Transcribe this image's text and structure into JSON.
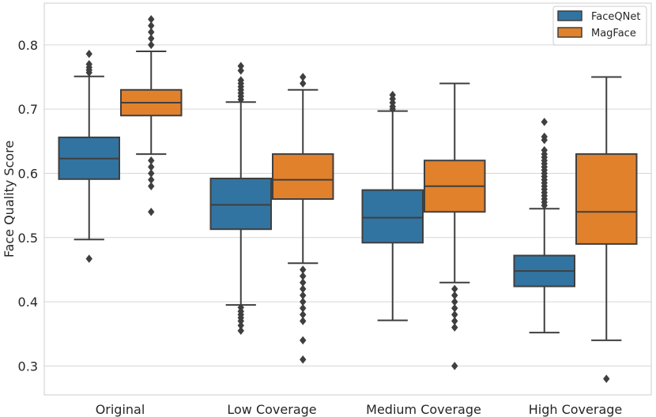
{
  "chart_data": {
    "type": "boxplot",
    "title": "",
    "xlabel": "",
    "ylabel": "Face Quality Score",
    "ylim": [
      0.255,
      0.865
    ],
    "yticks": [
      "0.3",
      "0.4",
      "0.5",
      "0.6",
      "0.7",
      "0.8"
    ],
    "yticks_values": [
      0.3,
      0.4,
      0.5,
      0.6,
      0.7,
      0.8
    ],
    "categories": [
      "Original",
      "Low Coverage",
      "Medium Coverage",
      "High Coverage"
    ],
    "legend_position": "top-right",
    "grid": true,
    "series": [
      {
        "name": "FaceQNet",
        "color": "#3274a1",
        "boxes": [
          {
            "q1": 0.591,
            "median": 0.623,
            "q3": 0.656,
            "whisker_low": 0.497,
            "whisker_high": 0.751,
            "outliers": [
              0.467,
              0.786,
              0.77,
              0.765,
              0.761,
              0.757
            ]
          },
          {
            "q1": 0.513,
            "median": 0.551,
            "q3": 0.592,
            "whisker_low": 0.395,
            "whisker_high": 0.711,
            "outliers": [
              0.767,
              0.76,
              0.745,
              0.74,
              0.735,
              0.73,
              0.725,
              0.72,
              0.715,
              0.391,
              0.385,
              0.38,
              0.375,
              0.37,
              0.363,
              0.355
            ]
          },
          {
            "q1": 0.492,
            "median": 0.531,
            "q3": 0.574,
            "whisker_low": 0.371,
            "whisker_high": 0.697,
            "outliers": [
              0.722,
              0.716,
              0.71,
              0.704,
              0.7
            ]
          },
          {
            "q1": 0.424,
            "median": 0.448,
            "q3": 0.472,
            "whisker_low": 0.352,
            "whisker_high": 0.545,
            "outliers": [
              0.68,
              0.657,
              0.652,
              0.636,
              0.63,
              0.625,
              0.62,
              0.615,
              0.61,
              0.605,
              0.6,
              0.595,
              0.59,
              0.585,
              0.58,
              0.575,
              0.57,
              0.565,
              0.56,
              0.555,
              0.55
            ]
          }
        ]
      },
      {
        "name": "MagFace",
        "color": "#e1812c",
        "boxes": [
          {
            "q1": 0.69,
            "median": 0.71,
            "q3": 0.73,
            "whisker_low": 0.63,
            "whisker_high": 0.79,
            "outliers": [
              0.84,
              0.83,
              0.82,
              0.81,
              0.8,
              0.62,
              0.61,
              0.6,
              0.59,
              0.58,
              0.54
            ]
          },
          {
            "q1": 0.56,
            "median": 0.59,
            "q3": 0.63,
            "whisker_low": 0.46,
            "whisker_high": 0.73,
            "outliers": [
              0.75,
              0.74,
              0.45,
              0.44,
              0.43,
              0.42,
              0.41,
              0.4,
              0.39,
              0.38,
              0.37,
              0.34,
              0.31
            ]
          },
          {
            "q1": 0.54,
            "median": 0.58,
            "q3": 0.62,
            "whisker_low": 0.43,
            "whisker_high": 0.74,
            "outliers": [
              0.42,
              0.41,
              0.4,
              0.39,
              0.38,
              0.37,
              0.36,
              0.3
            ]
          },
          {
            "q1": 0.49,
            "median": 0.54,
            "q3": 0.63,
            "whisker_low": 0.34,
            "whisker_high": 0.75,
            "outliers": [
              0.28
            ]
          }
        ]
      }
    ]
  }
}
